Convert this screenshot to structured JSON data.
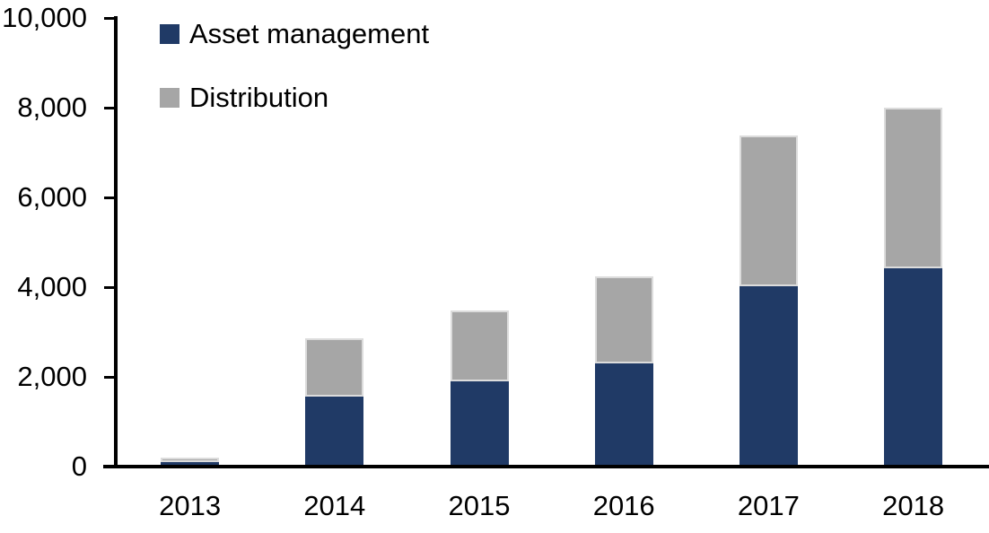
{
  "chart_data": {
    "type": "bar",
    "stacked": true,
    "categories": [
      "2013",
      "2014",
      "2015",
      "2016",
      "2017",
      "2018"
    ],
    "series": [
      {
        "name": "Asset management",
        "color": "#203A66",
        "values": [
          100,
          1560,
          1900,
          2310,
          4030,
          4430
        ]
      },
      {
        "name": "Distribution",
        "color": "#A6A6A6",
        "values": [
          110,
          1300,
          1590,
          1940,
          3350,
          3570
        ]
      }
    ],
    "stack_totals": [
      210,
      2860,
      3490,
      4250,
      7380,
      8000
    ],
    "ylim": [
      0,
      10000
    ],
    "ytick_values": [
      0,
      2000,
      4000,
      6000,
      8000,
      10000
    ],
    "ytick_labels": [
      "0",
      "2,000",
      "4,000",
      "6,000",
      "8,000",
      "10,000"
    ],
    "grid": false,
    "legend_position": "top-left",
    "axis_color": "#000000"
  }
}
